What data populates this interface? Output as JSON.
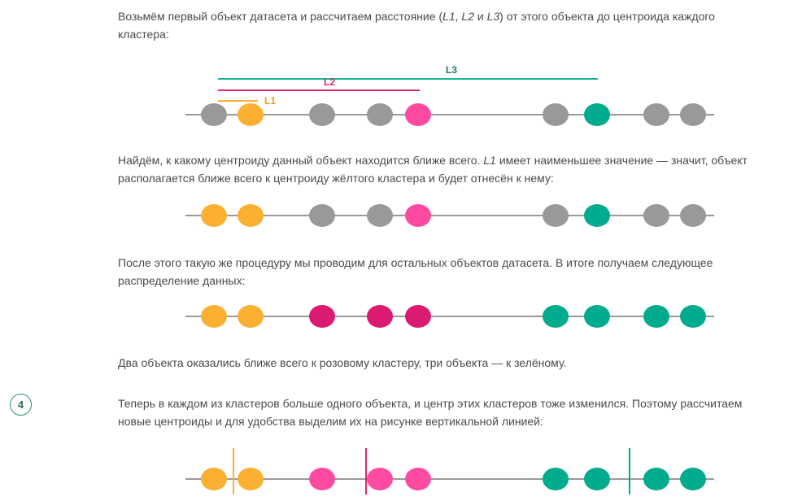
{
  "paragraphs": {
    "p1_a": "Возьмём первый объект датасета и рассчитаем расстояние (",
    "p1_l1": "L1",
    "p1_sep1": ", ",
    "p1_l2": "L2",
    "p1_sep2": " и ",
    "p1_l3": "L3",
    "p1_b": ") от этого объекта до центроида каждого кластера:",
    "p2_a": "Найдём, к какому центроиду данный объект находится ближе всего. ",
    "p2_l1": "L1",
    "p2_b": " имеет наименьшее значение — значит, объект располагается ближе всего к центроиду жёлтого кластера и будет отнесён к нему:",
    "p3": "После этого такую же процедуру мы проводим для остальных объектов датасета. В итоге получаем следующее распределение данных:",
    "p4": "Два объекта оказались ближе всего к розовому кластеру, три объекта — к зелёному.",
    "p5": "Теперь в каждом из кластеров больше одного объекта, и центр этих кластеров тоже изменился. Поэтому рассчитаем новые центроиды и для удобства выделим их на рисунке вертикальной линией:"
  },
  "step_number": "4",
  "colors": {
    "gray": "#999999",
    "orange": "#fbb031",
    "pink": "#fe4ba1",
    "dark_pink": "#db1a71",
    "teal": "#00ab8e",
    "line": "#999999",
    "l1_line": "#fbb031",
    "l2_line": "#e0286f",
    "l3_line": "#1ab395"
  },
  "distance_labels": {
    "l1": "L1",
    "l2": "L2",
    "l3": "L3"
  },
  "diagrams": [
    {
      "points": [
        "gray",
        "orange",
        "gray",
        "gray",
        "pink",
        "gray",
        "teal",
        "gray",
        "gray"
      ]
    },
    {
      "points": [
        "orange",
        "orange",
        "gray",
        "gray",
        "pink",
        "gray",
        "teal",
        "gray",
        "gray"
      ]
    },
    {
      "points": [
        "orange",
        "orange",
        "dark_pink",
        "dark_pink",
        "dark_pink",
        "teal",
        "teal",
        "teal",
        "teal"
      ]
    },
    {
      "points": [
        "orange",
        "orange",
        "pink",
        "pink",
        "pink",
        "teal",
        "teal",
        "teal",
        "teal"
      ]
    }
  ]
}
